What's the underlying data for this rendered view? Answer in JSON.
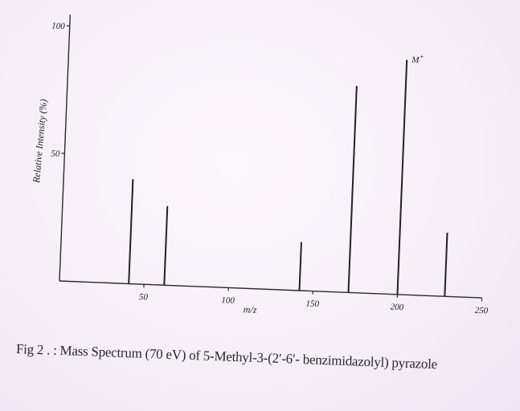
{
  "chart_data": {
    "type": "bar",
    "title": "",
    "xlabel": "m/z",
    "ylabel": "Relative Intensity (%)",
    "xlim": [
      0,
      250
    ],
    "ylim": [
      0,
      100
    ],
    "xticks": [
      "50",
      "100",
      "150",
      "200",
      "250"
    ],
    "yticks": [
      "100",
      "50"
    ],
    "x": [
      41,
      62,
      142,
      171,
      200,
      228
    ],
    "values": [
      41,
      31,
      19,
      81,
      92,
      25
    ],
    "annotations": [
      {
        "text": "M+",
        "x": 200
      }
    ],
    "grid": false,
    "legend": "none"
  },
  "caption": "Fig 2 . : Mass Spectrum (70 eV) of 5-Methyl-3-(2′-6′- benzimidazolyl) pyrazole"
}
